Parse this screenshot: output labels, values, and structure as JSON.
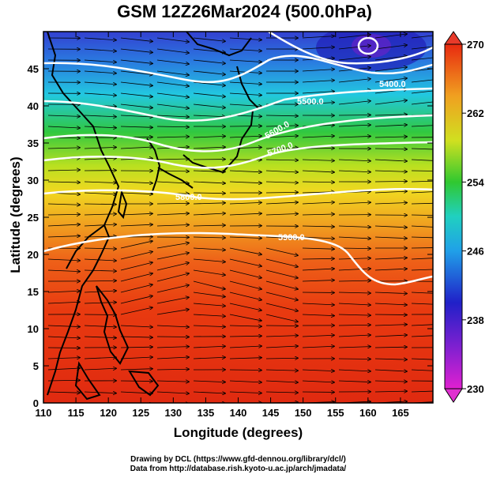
{
  "title": "GSM 12Z26Mar2024 (500.0hPa)",
  "x_axis": {
    "label": "Longitude (degrees)",
    "range": [
      110,
      170
    ],
    "ticks": [
      "110",
      "115",
      "120",
      "125",
      "130",
      "135",
      "140",
      "145",
      "150",
      "155",
      "160",
      "165"
    ]
  },
  "y_axis": {
    "label": "Latitude  (degrees)",
    "range": [
      0,
      50
    ],
    "ticks": [
      "0",
      "5",
      "10",
      "15",
      "20",
      "25",
      "30",
      "35",
      "40",
      "45"
    ]
  },
  "colorbar": {
    "range": [
      230,
      270
    ],
    "ticks": [
      "230",
      "238",
      "246",
      "254",
      "262",
      "270"
    ]
  },
  "contour_labels": [
    "5900.0",
    "5800.0",
    "5700.0",
    "5600.0",
    "5500.0",
    "5400.0"
  ],
  "credits": {
    "line1": "Drawing by DCL (https://www.gfd-dennou.org/library/dcl/)",
    "line2": "Data from http://database.rish.kyoto-u.ac.jp/arch/jmadata/"
  },
  "colors": {
    "purple": "#e020d0",
    "blue": "#2030c8",
    "cyan": "#20c8e8",
    "green": "#30c830",
    "yellow": "#f0e020",
    "orange": "#f0a020",
    "red": "#e83010",
    "contour": "#ffffff",
    "vector": "#000000"
  }
}
